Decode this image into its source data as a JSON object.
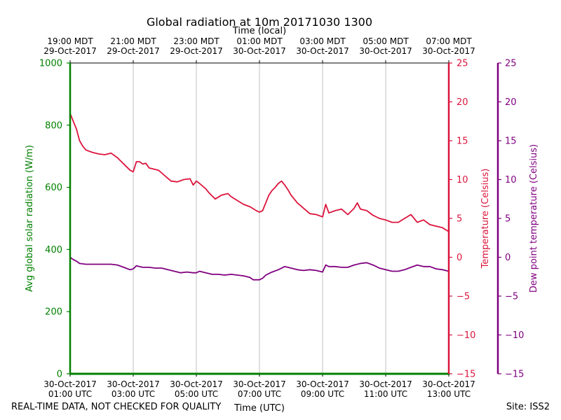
{
  "chart_data": {
    "type": "line",
    "title": "Global radiation at 10m 20171030 1300",
    "top_axis": {
      "label": "Time (local)",
      "ticks": [
        [
          "19:00 MDT",
          "29-Oct-2017"
        ],
        [
          "21:00 MDT",
          "29-Oct-2017"
        ],
        [
          "23:00 MDT",
          "29-Oct-2017"
        ],
        [
          "01:00 MDT",
          "30-Oct-2017"
        ],
        [
          "03:00 MDT",
          "30-Oct-2017"
        ],
        [
          "05:00 MDT",
          "30-Oct-2017"
        ],
        [
          "07:00 MDT",
          "30-Oct-2017"
        ]
      ]
    },
    "bottom_axis": {
      "label": "Time (UTC)",
      "ticks": [
        [
          "30-Oct-2017",
          "01:00 UTC"
        ],
        [
          "30-Oct-2017",
          "03:00 UTC"
        ],
        [
          "30-Oct-2017",
          "05:00 UTC"
        ],
        [
          "30-Oct-2017",
          "07:00 UTC"
        ],
        [
          "30-Oct-2017",
          "09:00 UTC"
        ],
        [
          "30-Oct-2017",
          "11:00 UTC"
        ],
        [
          "30-Oct-2017",
          "13:00 UTC"
        ]
      ],
      "xlim_hours_utc": [
        1,
        13
      ]
    },
    "left_axis": {
      "label": "Avg global solar radiation (W/m)",
      "ylim": [
        0,
        1000
      ],
      "ticks": [
        "0",
        "200",
        "400",
        "600",
        "800",
        "1000"
      ],
      "color": "#008000"
    },
    "right_axis_1": {
      "label": "Temperature (Celsius)",
      "ylim": [
        -15,
        25
      ],
      "ticks": [
        "−15",
        "−10",
        "−5",
        "0",
        "5",
        "10",
        "15",
        "20",
        "25"
      ],
      "color": "#dc143c"
    },
    "right_axis_2": {
      "label": "Dew point temperature (Celsius)",
      "ylim": [
        -15,
        25
      ],
      "ticks": [
        "−15",
        "−10",
        "−5",
        "0",
        "5",
        "10",
        "15",
        "20",
        "25"
      ],
      "color": "#800080"
    },
    "grid": "vertical",
    "series": [
      {
        "name": "Avg global solar radiation",
        "axis": "left",
        "color": "#008000",
        "x": [
          1,
          13
        ],
        "y": [
          0,
          0
        ]
      },
      {
        "name": "Temperature",
        "axis": "right_1",
        "color": "#dc143c",
        "x": [
          1.0,
          1.1,
          1.2,
          1.3,
          1.4,
          1.5,
          1.7,
          1.9,
          2.1,
          2.3,
          2.5,
          2.7,
          2.9,
          3.0,
          3.1,
          3.2,
          3.3,
          3.4,
          3.5,
          3.6,
          3.7,
          3.8,
          4.0,
          4.2,
          4.4,
          4.6,
          4.8,
          4.9,
          5.0,
          5.1,
          5.3,
          5.4,
          5.6,
          5.8,
          6.0,
          6.1,
          6.3,
          6.5,
          6.7,
          6.9,
          7.0,
          7.1,
          7.2,
          7.3,
          7.4,
          7.5,
          7.6,
          7.7,
          7.8,
          7.9,
          8.0,
          8.2,
          8.4,
          8.6,
          8.8,
          9.0,
          9.1,
          9.2,
          9.4,
          9.6,
          9.8,
          10.0,
          10.1,
          10.2,
          10.4,
          10.6,
          10.8,
          11.0,
          11.2,
          11.4,
          11.6,
          11.8,
          12.0,
          12.2,
          12.4,
          12.6,
          12.8,
          13.0
        ],
        "y": [
          18.5,
          17.5,
          16.5,
          15.0,
          14.3,
          13.8,
          13.5,
          13.3,
          13.2,
          13.4,
          12.8,
          12.0,
          11.2,
          11.0,
          12.3,
          12.3,
          12.0,
          12.1,
          11.5,
          11.4,
          11.3,
          11.2,
          10.5,
          9.8,
          9.7,
          10.0,
          10.1,
          9.3,
          9.8,
          9.5,
          8.8,
          8.3,
          7.5,
          8.0,
          8.2,
          7.8,
          7.3,
          6.8,
          6.5,
          6.0,
          5.8,
          6.0,
          7.0,
          8.0,
          8.6,
          9.0,
          9.5,
          9.8,
          9.3,
          8.7,
          8.0,
          7.0,
          6.3,
          5.6,
          5.5,
          5.2,
          6.8,
          5.7,
          6.0,
          6.2,
          5.5,
          6.3,
          7.0,
          6.2,
          6.0,
          5.4,
          5.0,
          4.8,
          4.5,
          4.5,
          5.0,
          5.5,
          4.5,
          4.8,
          4.2,
          4.0,
          3.8,
          3.3
        ]
      },
      {
        "name": "Dew point temperature",
        "axis": "right_2",
        "color": "#800080",
        "x": [
          1.0,
          1.1,
          1.2,
          1.3,
          1.5,
          1.7,
          2.0,
          2.3,
          2.5,
          2.7,
          2.9,
          3.0,
          3.1,
          3.3,
          3.5,
          3.7,
          3.9,
          4.1,
          4.3,
          4.5,
          4.7,
          4.9,
          5.0,
          5.1,
          5.3,
          5.5,
          5.7,
          5.9,
          6.1,
          6.3,
          6.5,
          6.7,
          6.8,
          6.9,
          7.0,
          7.1,
          7.2,
          7.4,
          7.6,
          7.8,
          8.0,
          8.2,
          8.4,
          8.6,
          8.8,
          9.0,
          9.1,
          9.2,
          9.4,
          9.6,
          9.8,
          10.0,
          10.2,
          10.4,
          10.6,
          10.8,
          11.0,
          11.2,
          11.4,
          11.6,
          11.8,
          12.0,
          12.2,
          12.4,
          12.6,
          12.8,
          13.0
        ],
        "y": [
          0.0,
          -0.3,
          -0.5,
          -0.8,
          -0.9,
          -0.9,
          -0.9,
          -0.9,
          -1.0,
          -1.3,
          -1.6,
          -1.5,
          -1.1,
          -1.3,
          -1.3,
          -1.4,
          -1.4,
          -1.6,
          -1.8,
          -2.0,
          -1.9,
          -2.0,
          -2.0,
          -1.8,
          -2.0,
          -2.2,
          -2.2,
          -2.3,
          -2.2,
          -2.3,
          -2.4,
          -2.6,
          -2.9,
          -2.9,
          -2.9,
          -2.7,
          -2.3,
          -1.9,
          -1.6,
          -1.2,
          -1.4,
          -1.6,
          -1.7,
          -1.6,
          -1.7,
          -1.9,
          -1.0,
          -1.2,
          -1.2,
          -1.3,
          -1.3,
          -1.0,
          -0.8,
          -0.7,
          -1.0,
          -1.4,
          -1.6,
          -1.8,
          -1.8,
          -1.6,
          -1.3,
          -1.0,
          -1.2,
          -1.2,
          -1.5,
          -1.6,
          -1.8
        ]
      }
    ]
  },
  "footer": {
    "left": "REAL-TIME DATA, NOT CHECKED FOR QUALITY",
    "right": "Site: ISS2"
  }
}
